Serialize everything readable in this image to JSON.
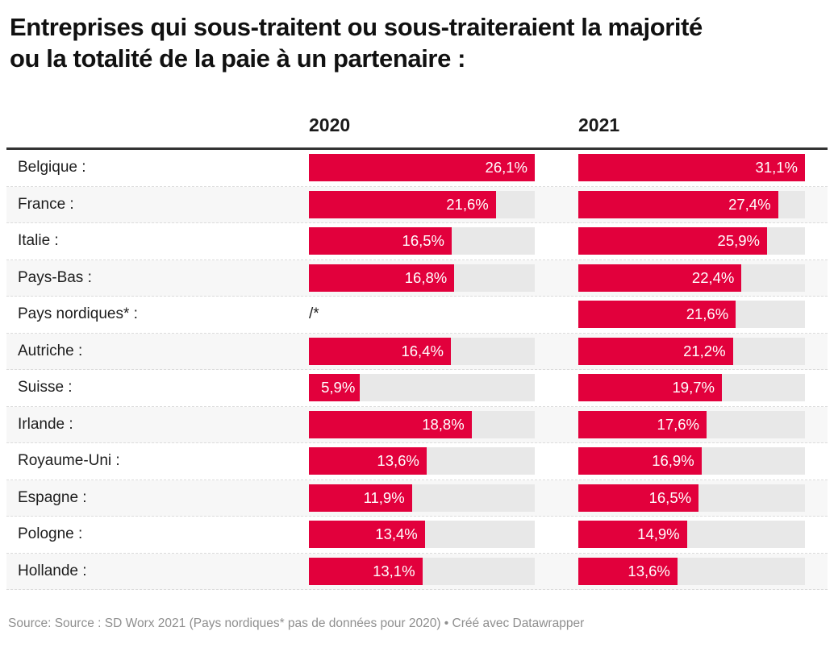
{
  "title": {
    "line1": "Entreprises qui sous-traitent ou sous-traiteraient la majorité",
    "line2": "ou la totalité de la paie à un partenaire :"
  },
  "columns": [
    {
      "label": "2020"
    },
    {
      "label": "2021"
    }
  ],
  "na_label": "/*",
  "footer": "Source: Source : SD Worx 2021 (Pays nordiques* pas de données pour 2020) • Créé avec Datawrapper",
  "colors": {
    "bar": "#e2003c",
    "track": "#e8e8e8",
    "stripe": "#f7f7f7",
    "rule": "#333333",
    "title": "#111111",
    "label": "#1d1d1d",
    "footer": "#8f8f8f"
  },
  "chart_data": {
    "type": "bar",
    "title": "Entreprises qui sous-traitent ou sous-traiteraient la majorité ou la totalité de la paie à un partenaire :",
    "categories": [
      "Belgique :",
      "France :",
      "Italie :",
      "Pays-Bas :",
      "Pays nordiques* :",
      "Autriche :",
      "Suisse :",
      "Irlande :",
      "Royaume-Uni :",
      "Espagne :",
      "Pologne :",
      "Hollande :"
    ],
    "series": [
      {
        "name": "2020",
        "values": [
          26.1,
          21.6,
          16.5,
          16.8,
          null,
          16.4,
          5.9,
          18.8,
          13.6,
          11.9,
          13.4,
          13.1
        ]
      },
      {
        "name": "2021",
        "values": [
          31.1,
          27.4,
          25.9,
          22.4,
          21.6,
          21.2,
          19.7,
          17.6,
          16.9,
          16.5,
          14.9,
          13.6
        ]
      }
    ],
    "value_suffix": "%",
    "decimal_separator": ",",
    "missing_marker": "/*",
    "layout": "each column scaled to its own max value; labels inside bars, right-aligned",
    "legend_position": "column headers above table",
    "grid": false
  }
}
